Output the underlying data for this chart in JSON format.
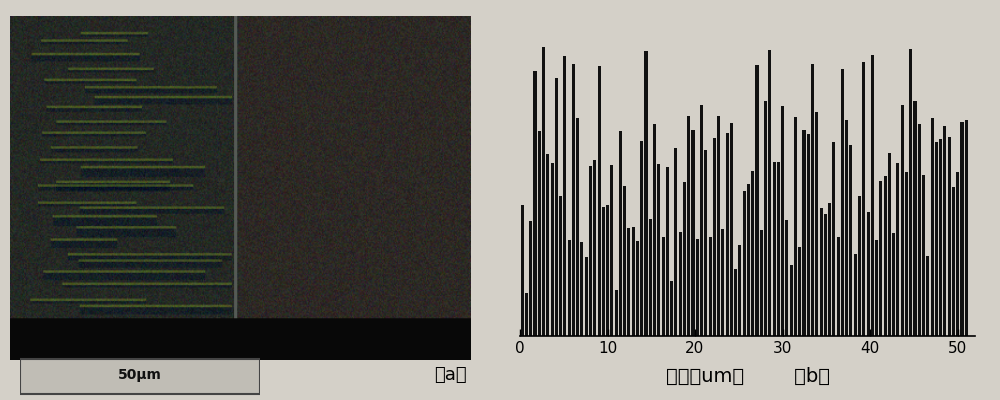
{
  "background_color": "#d4d0c8",
  "bar_color": "#111111",
  "xlabel": "膜厕（um）",
  "label_a": "（a）",
  "label_b": "（b）",
  "xmin": 0,
  "xmax": 52,
  "xticks": [
    0,
    10,
    20,
    30,
    40,
    50
  ],
  "num_bars": 105,
  "figsize": [
    10,
    4
  ],
  "dpi": 100,
  "scale_bar_text": "50μm"
}
